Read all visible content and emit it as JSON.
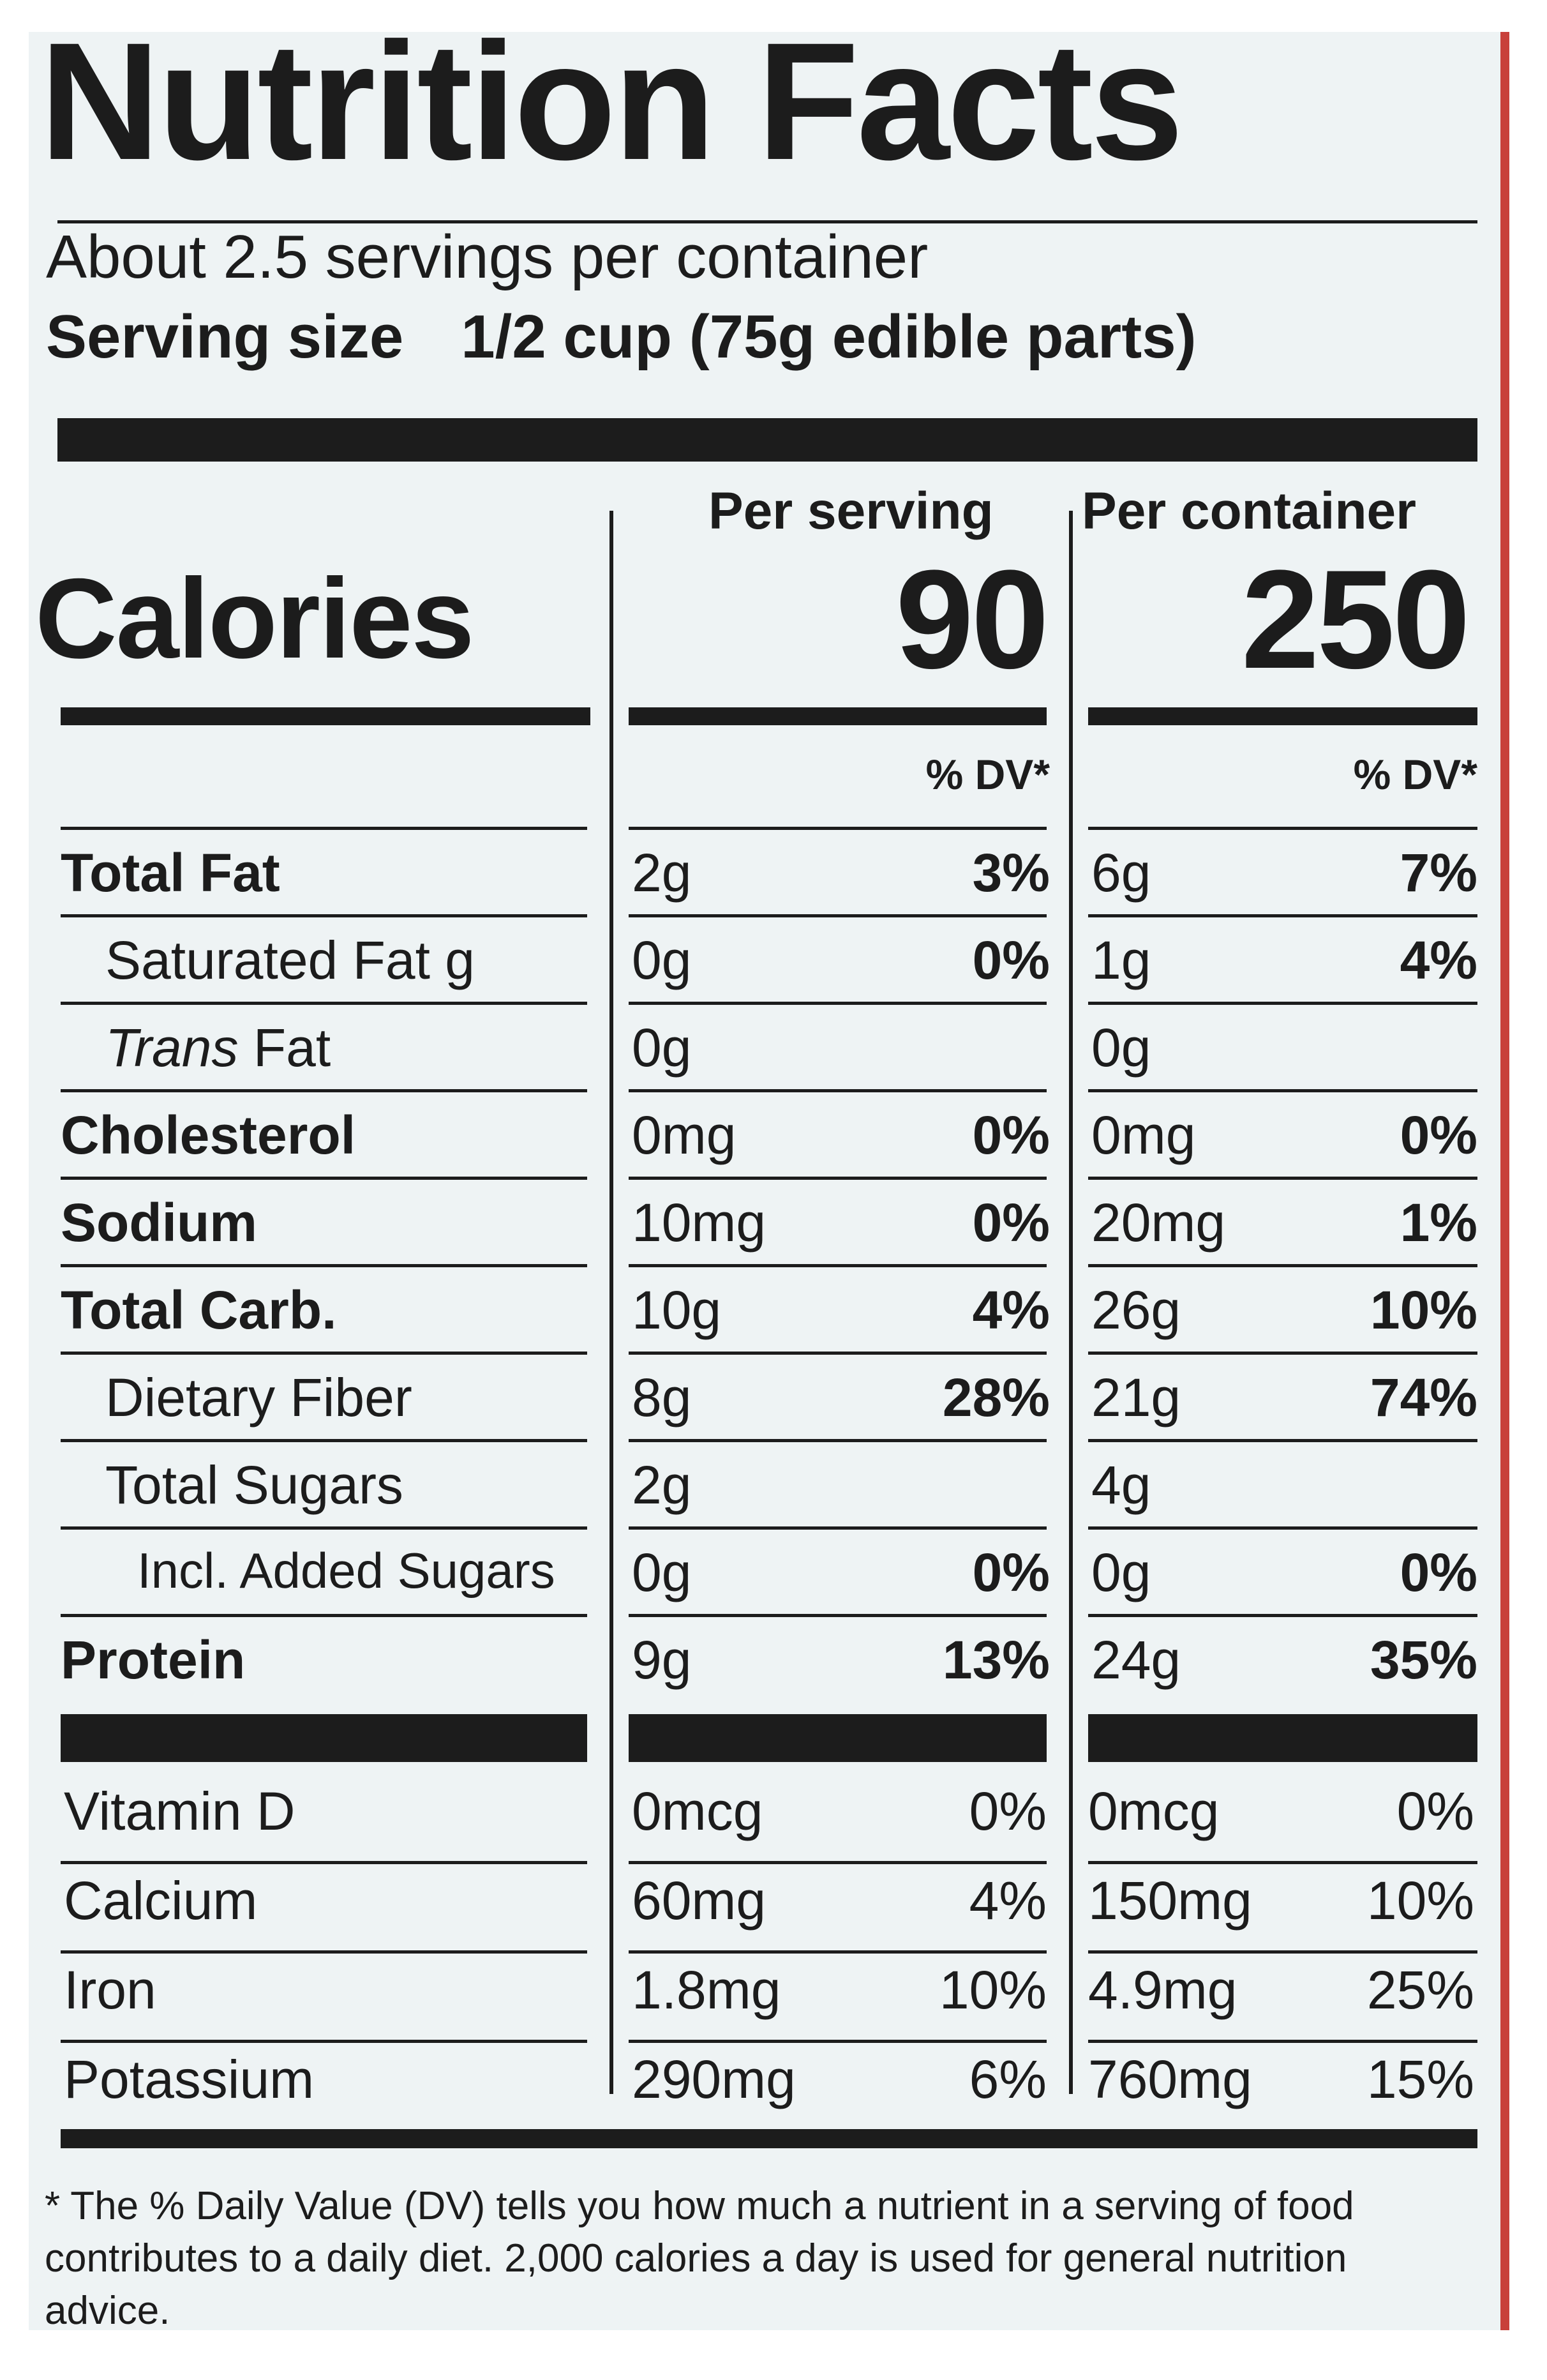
{
  "title": "Nutrition Facts",
  "servings_per_container": "About 2.5 servings per container",
  "serving_size": {
    "label": "Serving size",
    "value": "1/2 cup (75g edible parts)"
  },
  "columns": {
    "per_serving": "Per serving",
    "per_container": "Per container"
  },
  "calories": {
    "label": "Calories",
    "per_serving": "90",
    "per_container": "250"
  },
  "dv_header": "% DV*",
  "nutrients": [
    {
      "name": "Total Fat",
      "bold": true,
      "indent": 0,
      "s_amt": "2g",
      "s_dv": "3%",
      "c_amt": "6g",
      "c_dv": "7%"
    },
    {
      "name": "Saturated Fat g",
      "bold": false,
      "indent": 1,
      "s_amt": "0g",
      "s_dv": "0%",
      "c_amt": "1g",
      "c_dv": "4%"
    },
    {
      "name_italic": "Trans",
      "name": " Fat",
      "bold": false,
      "indent": 1,
      "s_amt": "0g",
      "s_dv": "",
      "c_amt": "0g",
      "c_dv": ""
    },
    {
      "name": "Cholesterol",
      "bold": true,
      "indent": 0,
      "s_amt": "0mg",
      "s_dv": "0%",
      "c_amt": "0mg",
      "c_dv": "0%"
    },
    {
      "name": "Sodium",
      "bold": true,
      "indent": 0,
      "s_amt": "10mg",
      "s_dv": "0%",
      "c_amt": "20mg",
      "c_dv": "1%"
    },
    {
      "name": "Total Carb.",
      "bold": true,
      "indent": 0,
      "s_amt": "10g",
      "s_dv": "4%",
      "c_amt": "26g",
      "c_dv": "10%"
    },
    {
      "name": "Dietary Fiber",
      "bold": false,
      "indent": 1,
      "s_amt": "8g",
      "s_dv": "28%",
      "c_amt": "21g",
      "c_dv": "74%"
    },
    {
      "name": "Total Sugars",
      "bold": false,
      "indent": 1,
      "s_amt": "2g",
      "s_dv": "",
      "c_amt": "4g",
      "c_dv": ""
    },
    {
      "name": "Incl. Added Sugars",
      "bold": false,
      "indent": 2,
      "s_amt": "0g",
      "s_dv": "0%",
      "c_amt": "0g",
      "c_dv": "0%"
    },
    {
      "name": "Protein",
      "bold": true,
      "indent": 0,
      "s_amt": "9g",
      "s_dv": "13%",
      "c_amt": "24g",
      "c_dv": "35%"
    }
  ],
  "vitamins": [
    {
      "name": "Vitamin D",
      "s_amt": "0mcg",
      "s_dv": "0%",
      "c_amt": "0mcg",
      "c_dv": "0%"
    },
    {
      "name": "Calcium",
      "s_amt": "60mg",
      "s_dv": "4%",
      "c_amt": "150mg",
      "c_dv": "10%"
    },
    {
      "name": "Iron",
      "s_amt": "1.8mg",
      "s_dv": "10%",
      "c_amt": "4.9mg",
      "c_dv": "25%"
    },
    {
      "name": "Potassium",
      "s_amt": "290mg",
      "s_dv": "6%",
      "c_amt": "760mg",
      "c_dv": "15%"
    }
  ],
  "footnote": "* The % Daily Value (DV) tells you how much a nutrient in a serving of food contributes to a daily diet. 2,000 calories a day is used for general nutrition advice.",
  "colors": {
    "ink": "#1c1c1c",
    "background": "#eef3f4",
    "edge": "#c8403a"
  }
}
